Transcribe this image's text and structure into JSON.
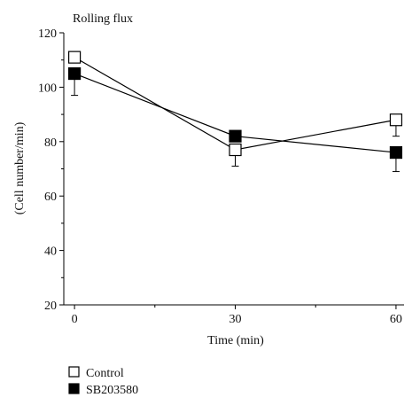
{
  "chart_data": {
    "type": "line",
    "title": "Rolling flux",
    "xlabel": "Time (min)",
    "ylabel": "(Cell number/min)",
    "x": [
      0,
      30,
      60
    ],
    "x_ticks": [
      "0",
      "30",
      "60"
    ],
    "xlim": [
      -2,
      61.5
    ],
    "ylim": [
      20,
      120
    ],
    "y_ticks": [
      "20",
      "40",
      "60",
      "80",
      "100",
      "120"
    ],
    "grid": false,
    "legend_position": "bottom-left",
    "series": [
      {
        "name": "Control",
        "marker": "open-square",
        "values": [
          111,
          77,
          88
        ],
        "error": [
          0,
          6,
          6
        ]
      },
      {
        "name": "SB203580",
        "marker": "filled-square",
        "values": [
          105,
          82,
          76
        ],
        "error": [
          8,
          0,
          7
        ]
      }
    ]
  }
}
